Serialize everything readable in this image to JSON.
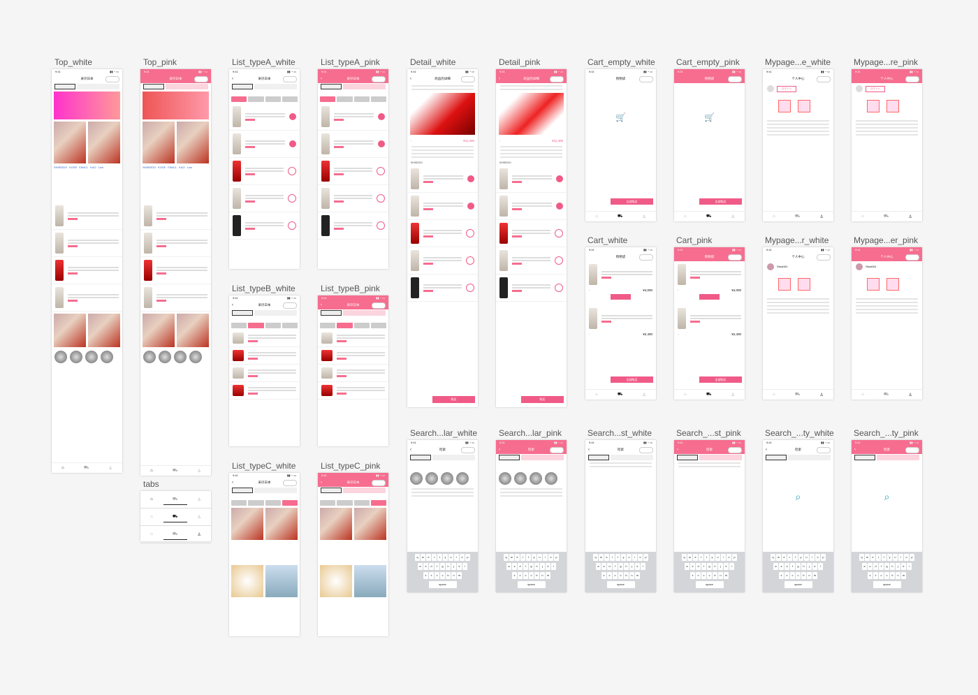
{
  "boards": {
    "top_white": "Top_white",
    "top_pink": "Top_pink",
    "tabs": "tabs",
    "list_a_white": "List_typeA_white",
    "list_a_pink": "List_typeA_pink",
    "list_b_white": "List_typeB_white",
    "list_b_pink": "List_typeB_pink",
    "list_c_white": "List_typeC_white",
    "list_c_pink": "List_typeC_pink",
    "detail_white": "Detail_white",
    "detail_pink": "Detail_pink",
    "cart_empty_white": "Cart_empty_white",
    "cart_empty_pink": "Cart_empty_pink",
    "cart_white": "Cart_white",
    "cart_pink": "Cart_pink",
    "mypage_e_white": "Mypage...e_white",
    "mypage_re_pink": "Mypage...re_pink",
    "mypage_r_white": "Mypage...r_white",
    "mypage_er_pink": "Mypage...er_pink",
    "search_lar_white": "Search...lar_white",
    "search_lar_pink": "Search...lar_pink",
    "search_st_white": "Search...st_white",
    "search_st_pink": "Search_...st_pink",
    "search_ty_white": "Search_...ty_white",
    "search_ty_pink": "Search_...ty_pink"
  },
  "screen": {
    "time": "9:41",
    "top_title": "采尽日本",
    "list_title": "采尽日本",
    "detail_title": "商品的详细",
    "cart_title": "购物袋",
    "mypage_title": "个人中心",
    "search_title": "检索",
    "login": "ログイン",
    "buy": "购买",
    "checkout": "全部购买",
    "price_detail": "¥11,400",
    "price_cart_1": "¥4,000",
    "price_cart_2": "¥2,400",
    "brand": "SHISEIDO",
    "space": "space",
    "user": "Gloud104"
  },
  "icons": {
    "home": "home-icon",
    "cart": "cart-icon",
    "user": "user-icon",
    "search": "search-icon"
  },
  "colors": {
    "accent": "#f05a87",
    "pink_header": "#f66d8f",
    "cart_icon": "#1da1c4"
  }
}
